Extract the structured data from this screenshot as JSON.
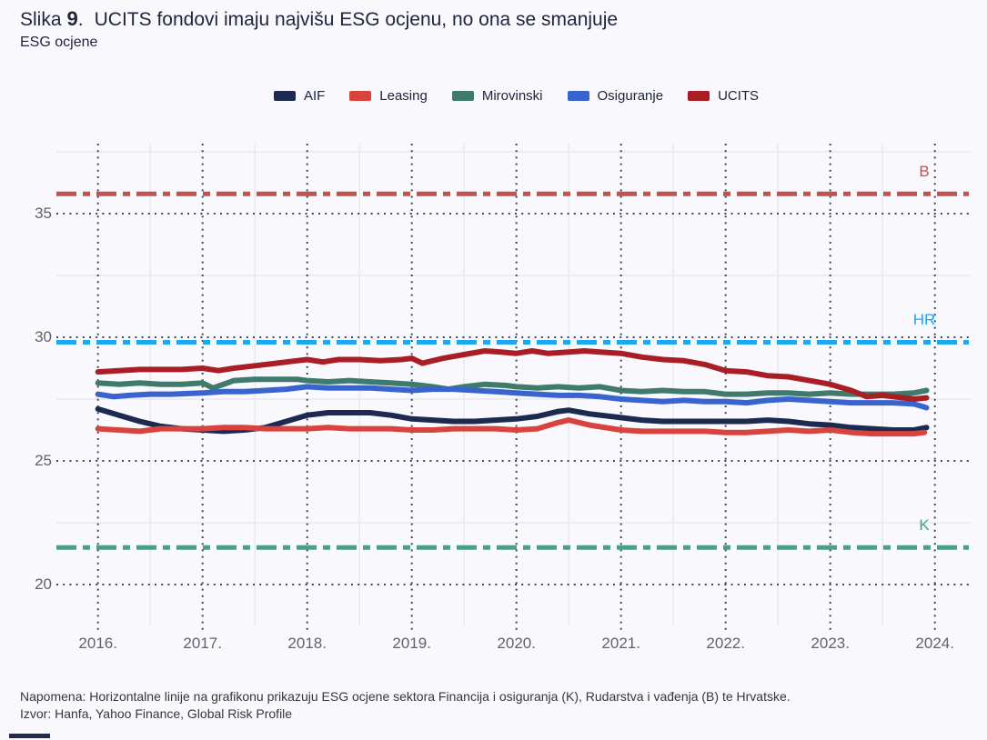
{
  "title": {
    "figure_label": "Slika",
    "figure_number": "9",
    "dot": ".",
    "text": "UCITS fondovi imaju najvišu ESG ocjenu, no ona se smanjuje"
  },
  "subtitle": "ESG ocjene",
  "notes": {
    "napomena": "Napomena: Horizontalne linije na grafikonu prikazuju ESG ocjene sektora Financija i osiguranja (K), Rudarstva i vađenja (B) te Hrvatske.",
    "izvor": "Izvor: Hanfa, Yahoo Finance, Global Risk Profile"
  },
  "chart_data": {
    "type": "line",
    "title": "UCITS fondovi imaju najvišu ESG ocjenu, no ona se smanjuje",
    "ylabel": "ESG ocjene",
    "x_axis": {
      "tick_labels": [
        "2016.",
        "2017.",
        "2018.",
        "2019.",
        "2020.",
        "2021.",
        "2022.",
        "2023.",
        "2024."
      ],
      "tick_values": [
        2016,
        2017,
        2018,
        2019,
        2020,
        2021,
        2022,
        2023,
        2024
      ],
      "range": [
        2015.6,
        2024.35
      ]
    },
    "y_axis": {
      "tick_labels": [
        "35",
        "30",
        "25",
        "20"
      ],
      "tick_values": [
        35,
        30,
        25,
        20
      ],
      "minor_gridlines": [
        37.5,
        32.5,
        27.5,
        22.5
      ],
      "range": [
        18.35,
        37.85
      ]
    },
    "legend_position": "top",
    "grid": "dotted-major-solid-minor",
    "reference_lines": [
      {
        "label": "B",
        "value": 35.8,
        "color": "#c0534f",
        "meaning": "Rudarstvo i vađenje"
      },
      {
        "label": "HR",
        "value": 29.8,
        "color": "#1ba7f2",
        "meaning": "Hrvatska"
      },
      {
        "label": "K",
        "value": 21.5,
        "color": "#4d9e88",
        "meaning": "Financije i osiguranje"
      }
    ],
    "series": [
      {
        "name": "AIF",
        "color": "#1c2a50",
        "points": [
          [
            2016.0,
            27.1
          ],
          [
            2016.2,
            26.85
          ],
          [
            2016.4,
            26.6
          ],
          [
            2016.6,
            26.4
          ],
          [
            2016.8,
            26.3
          ],
          [
            2017.0,
            26.25
          ],
          [
            2017.2,
            26.2
          ],
          [
            2017.4,
            26.25
          ],
          [
            2017.6,
            26.35
          ],
          [
            2017.8,
            26.6
          ],
          [
            2018.0,
            26.85
          ],
          [
            2018.2,
            26.95
          ],
          [
            2018.4,
            26.95
          ],
          [
            2018.6,
            26.95
          ],
          [
            2018.8,
            26.85
          ],
          [
            2019.0,
            26.7
          ],
          [
            2019.2,
            26.65
          ],
          [
            2019.4,
            26.6
          ],
          [
            2019.6,
            26.6
          ],
          [
            2019.8,
            26.65
          ],
          [
            2020.0,
            26.7
          ],
          [
            2020.2,
            26.8
          ],
          [
            2020.4,
            27.0
          ],
          [
            2020.5,
            27.05
          ],
          [
            2020.7,
            26.9
          ],
          [
            2021.0,
            26.75
          ],
          [
            2021.2,
            26.65
          ],
          [
            2021.4,
            26.6
          ],
          [
            2021.6,
            26.6
          ],
          [
            2021.8,
            26.6
          ],
          [
            2022.0,
            26.6
          ],
          [
            2022.2,
            26.6
          ],
          [
            2022.4,
            26.65
          ],
          [
            2022.6,
            26.6
          ],
          [
            2022.8,
            26.5
          ],
          [
            2023.0,
            26.45
          ],
          [
            2023.2,
            26.35
          ],
          [
            2023.4,
            26.3
          ],
          [
            2023.6,
            26.25
          ],
          [
            2023.8,
            26.25
          ],
          [
            2023.92,
            26.35
          ]
        ]
      },
      {
        "name": "Leasing",
        "color": "#d9433e",
        "points": [
          [
            2016.0,
            26.3
          ],
          [
            2016.2,
            26.25
          ],
          [
            2016.4,
            26.2
          ],
          [
            2016.6,
            26.3
          ],
          [
            2016.8,
            26.3
          ],
          [
            2017.0,
            26.3
          ],
          [
            2017.2,
            26.35
          ],
          [
            2017.4,
            26.35
          ],
          [
            2017.6,
            26.3
          ],
          [
            2017.8,
            26.3
          ],
          [
            2018.0,
            26.3
          ],
          [
            2018.2,
            26.35
          ],
          [
            2018.4,
            26.3
          ],
          [
            2018.6,
            26.3
          ],
          [
            2018.8,
            26.3
          ],
          [
            2019.0,
            26.25
          ],
          [
            2019.2,
            26.25
          ],
          [
            2019.4,
            26.3
          ],
          [
            2019.6,
            26.3
          ],
          [
            2019.8,
            26.3
          ],
          [
            2020.0,
            26.25
          ],
          [
            2020.2,
            26.3
          ],
          [
            2020.4,
            26.55
          ],
          [
            2020.5,
            26.65
          ],
          [
            2020.7,
            26.45
          ],
          [
            2021.0,
            26.25
          ],
          [
            2021.2,
            26.2
          ],
          [
            2021.4,
            26.2
          ],
          [
            2021.6,
            26.2
          ],
          [
            2021.8,
            26.2
          ],
          [
            2022.0,
            26.15
          ],
          [
            2022.2,
            26.15
          ],
          [
            2022.4,
            26.2
          ],
          [
            2022.6,
            26.25
          ],
          [
            2022.8,
            26.2
          ],
          [
            2023.0,
            26.25
          ],
          [
            2023.2,
            26.15
          ],
          [
            2023.4,
            26.1
          ],
          [
            2023.6,
            26.1
          ],
          [
            2023.8,
            26.1
          ],
          [
            2023.9,
            26.15
          ]
        ]
      },
      {
        "name": "Mirovinski",
        "color": "#3f7a6a",
        "points": [
          [
            2016.0,
            28.15
          ],
          [
            2016.2,
            28.1
          ],
          [
            2016.4,
            28.15
          ],
          [
            2016.6,
            28.1
          ],
          [
            2016.8,
            28.1
          ],
          [
            2017.0,
            28.15
          ],
          [
            2017.1,
            27.95
          ],
          [
            2017.3,
            28.25
          ],
          [
            2017.5,
            28.3
          ],
          [
            2017.7,
            28.3
          ],
          [
            2017.9,
            28.3
          ],
          [
            2018.0,
            28.25
          ],
          [
            2018.2,
            28.2
          ],
          [
            2018.4,
            28.25
          ],
          [
            2018.6,
            28.2
          ],
          [
            2018.8,
            28.15
          ],
          [
            2019.0,
            28.1
          ],
          [
            2019.2,
            28.0
          ],
          [
            2019.35,
            27.9
          ],
          [
            2019.5,
            28.0
          ],
          [
            2019.7,
            28.1
          ],
          [
            2019.9,
            28.05
          ],
          [
            2020.0,
            28.0
          ],
          [
            2020.2,
            27.95
          ],
          [
            2020.4,
            28.0
          ],
          [
            2020.6,
            27.95
          ],
          [
            2020.8,
            28.0
          ],
          [
            2021.0,
            27.85
          ],
          [
            2021.2,
            27.8
          ],
          [
            2021.4,
            27.85
          ],
          [
            2021.6,
            27.8
          ],
          [
            2021.8,
            27.8
          ],
          [
            2022.0,
            27.7
          ],
          [
            2022.2,
            27.7
          ],
          [
            2022.4,
            27.75
          ],
          [
            2022.6,
            27.75
          ],
          [
            2022.8,
            27.7
          ],
          [
            2023.0,
            27.75
          ],
          [
            2023.2,
            27.7
          ],
          [
            2023.4,
            27.7
          ],
          [
            2023.6,
            27.7
          ],
          [
            2023.8,
            27.75
          ],
          [
            2023.92,
            27.85
          ]
        ]
      },
      {
        "name": "Osiguranje",
        "color": "#3a64cd",
        "points": [
          [
            2016.0,
            27.7
          ],
          [
            2016.15,
            27.6
          ],
          [
            2016.3,
            27.65
          ],
          [
            2016.5,
            27.7
          ],
          [
            2016.7,
            27.7
          ],
          [
            2017.0,
            27.75
          ],
          [
            2017.2,
            27.8
          ],
          [
            2017.4,
            27.8
          ],
          [
            2017.6,
            27.85
          ],
          [
            2017.8,
            27.9
          ],
          [
            2018.0,
            28.0
          ],
          [
            2018.2,
            27.95
          ],
          [
            2018.4,
            27.95
          ],
          [
            2018.6,
            27.95
          ],
          [
            2018.8,
            27.9
          ],
          [
            2019.0,
            27.85
          ],
          [
            2019.2,
            27.9
          ],
          [
            2019.4,
            27.9
          ],
          [
            2019.6,
            27.85
          ],
          [
            2019.8,
            27.8
          ],
          [
            2020.0,
            27.75
          ],
          [
            2020.2,
            27.7
          ],
          [
            2020.4,
            27.65
          ],
          [
            2020.6,
            27.65
          ],
          [
            2020.8,
            27.6
          ],
          [
            2021.0,
            27.5
          ],
          [
            2021.2,
            27.45
          ],
          [
            2021.4,
            27.4
          ],
          [
            2021.6,
            27.45
          ],
          [
            2021.8,
            27.4
          ],
          [
            2022.0,
            27.4
          ],
          [
            2022.2,
            27.35
          ],
          [
            2022.4,
            27.45
          ],
          [
            2022.6,
            27.5
          ],
          [
            2022.8,
            27.45
          ],
          [
            2023.0,
            27.4
          ],
          [
            2023.2,
            27.35
          ],
          [
            2023.4,
            27.35
          ],
          [
            2023.6,
            27.35
          ],
          [
            2023.8,
            27.3
          ],
          [
            2023.92,
            27.15
          ]
        ]
      },
      {
        "name": "UCITS",
        "color": "#a81e24",
        "points": [
          [
            2016.0,
            28.6
          ],
          [
            2016.2,
            28.65
          ],
          [
            2016.4,
            28.7
          ],
          [
            2016.6,
            28.7
          ],
          [
            2016.8,
            28.7
          ],
          [
            2017.0,
            28.75
          ],
          [
            2017.15,
            28.65
          ],
          [
            2017.3,
            28.75
          ],
          [
            2017.5,
            28.85
          ],
          [
            2017.7,
            28.95
          ],
          [
            2017.9,
            29.05
          ],
          [
            2018.0,
            29.1
          ],
          [
            2018.15,
            29.0
          ],
          [
            2018.3,
            29.1
          ],
          [
            2018.5,
            29.1
          ],
          [
            2018.7,
            29.05
          ],
          [
            2018.9,
            29.1
          ],
          [
            2019.0,
            29.15
          ],
          [
            2019.1,
            28.95
          ],
          [
            2019.3,
            29.15
          ],
          [
            2019.5,
            29.3
          ],
          [
            2019.7,
            29.45
          ],
          [
            2019.85,
            29.4
          ],
          [
            2020.0,
            29.35
          ],
          [
            2020.15,
            29.45
          ],
          [
            2020.3,
            29.35
          ],
          [
            2020.5,
            29.4
          ],
          [
            2020.65,
            29.45
          ],
          [
            2020.8,
            29.4
          ],
          [
            2021.0,
            29.35
          ],
          [
            2021.2,
            29.2
          ],
          [
            2021.4,
            29.1
          ],
          [
            2021.6,
            29.05
          ],
          [
            2021.8,
            28.9
          ],
          [
            2022.0,
            28.65
          ],
          [
            2022.2,
            28.6
          ],
          [
            2022.4,
            28.45
          ],
          [
            2022.6,
            28.4
          ],
          [
            2022.8,
            28.25
          ],
          [
            2023.0,
            28.1
          ],
          [
            2023.2,
            27.85
          ],
          [
            2023.35,
            27.6
          ],
          [
            2023.5,
            27.65
          ],
          [
            2023.7,
            27.55
          ],
          [
            2023.8,
            27.5
          ],
          [
            2023.92,
            27.55
          ]
        ]
      }
    ]
  }
}
